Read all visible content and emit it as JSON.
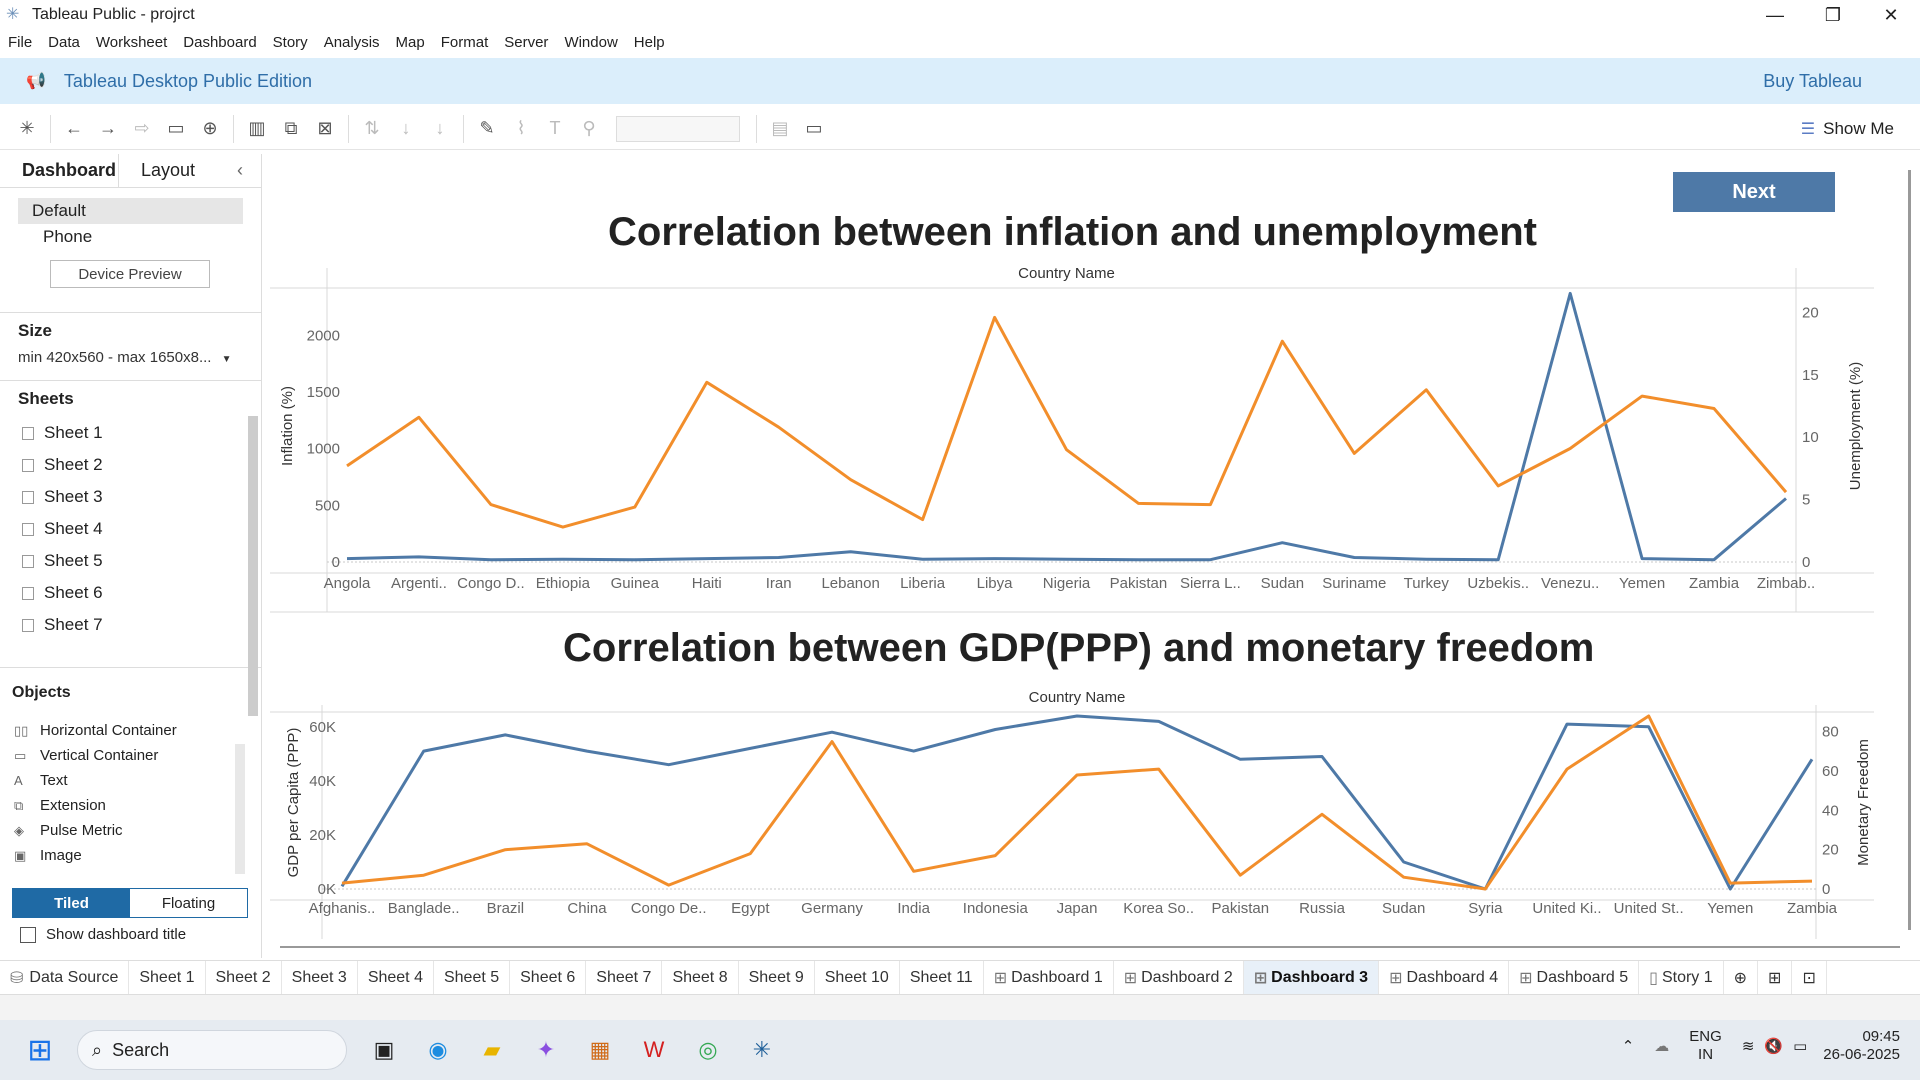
{
  "window": {
    "title": "Tableau Public - projrct",
    "minimize": "—",
    "restore": "❐",
    "close": "✕"
  },
  "menu": [
    "File",
    "Data",
    "Worksheet",
    "Dashboard",
    "Story",
    "Analysis",
    "Map",
    "Format",
    "Server",
    "Window",
    "Help"
  ],
  "banner": {
    "edition": "Tableau Desktop Public Edition",
    "buy": "Buy Tableau"
  },
  "toolbar": {
    "show_me": "Show Me"
  },
  "left_pane": {
    "tab_dashboard": "Dashboard",
    "tab_layout": "Layout",
    "devices": [
      "Default",
      "Phone"
    ],
    "device_preview": "Device Preview",
    "size_heading": "Size",
    "size_value": "min 420x560 - max 1650x8...",
    "sheets_heading": "Sheets",
    "sheets": [
      "Sheet 1",
      "Sheet 2",
      "Sheet 3",
      "Sheet 4",
      "Sheet 5",
      "Sheet 6",
      "Sheet 7"
    ],
    "objects_heading": "Objects",
    "objects": [
      {
        "icon": "horizontal-container-icon",
        "glyph": "▯▯",
        "label": "Horizontal Container"
      },
      {
        "icon": "vertical-container-icon",
        "glyph": "▭",
        "label": "Vertical Container"
      },
      {
        "icon": "text-icon",
        "glyph": "A",
        "label": "Text"
      },
      {
        "icon": "extension-icon",
        "glyph": "⧉",
        "label": "Extension"
      },
      {
        "icon": "pulse-metric-icon",
        "glyph": "◈",
        "label": "Pulse Metric"
      },
      {
        "icon": "image-icon",
        "glyph": "▣",
        "label": "Image"
      }
    ],
    "tiled": "Tiled",
    "floating": "Floating",
    "show_title": "Show dashboard title"
  },
  "dashboard": {
    "next": "Next"
  },
  "chart_data": [
    {
      "type": "line",
      "title": "Correlation between inflation and unemployment",
      "xlabel": "Country Name",
      "categories": [
        "Angola",
        "Argenti..",
        "Congo D..",
        "Ethiopia",
        "Guinea",
        "Haiti",
        "Iran",
        "Lebanon",
        "Liberia",
        "Libya",
        "Nigeria",
        "Pakistan",
        "Sierra L..",
        "Sudan",
        "Suriname",
        "Turkey",
        "Uzbekis..",
        "Venezu..",
        "Yemen",
        "Zambia",
        "Zimbab.."
      ],
      "left_axis": {
        "label": "Inflation (%)",
        "ylim": [
          0,
          2400
        ],
        "ticks": [
          0,
          500,
          1000,
          1500,
          2000
        ]
      },
      "right_axis": {
        "label": "Unemployment (%)",
        "ylim": [
          0,
          21.8
        ],
        "ticks": [
          0,
          5,
          10,
          15,
          20
        ]
      },
      "series": [
        {
          "axis": "left",
          "color": "#4e79a7",
          "values": [
            30,
            45,
            20,
            25,
            20,
            30,
            40,
            90,
            25,
            30,
            25,
            20,
            20,
            170,
            40,
            25,
            20,
            2370,
            30,
            20,
            560
          ]
        },
        {
          "axis": "right",
          "color": "#f28e2b",
          "values": [
            7.7,
            11.6,
            4.6,
            2.8,
            4.4,
            14.4,
            10.8,
            6.6,
            3.4,
            19.6,
            9.0,
            4.7,
            4.6,
            17.7,
            8.7,
            13.8,
            6.1,
            9.1,
            13.3,
            12.3,
            5.6
          ]
        }
      ]
    },
    {
      "type": "line",
      "title": "Correlation between GDP(PPP) and monetary freedom",
      "xlabel": "Country Name",
      "categories": [
        "Afghanis..",
        "Banglade..",
        "Brazil",
        "China",
        "Congo De..",
        "Egypt",
        "Germany",
        "India",
        "Indonesia",
        "Japan",
        "Korea So..",
        "Pakistan",
        "Russia",
        "Sudan",
        "Syria",
        "United Ki..",
        "United St..",
        "Yemen",
        "Zambia"
      ],
      "left_axis": {
        "label": "GDP per Capita (PPP)",
        "ylim": [
          0,
          64000
        ],
        "ticks": [
          "0K",
          "20K",
          "40K",
          "60K"
        ]
      },
      "right_axis": {
        "label": "Monetary Freedom",
        "ylim": [
          0,
          88
        ],
        "ticks": [
          0,
          20,
          40,
          60,
          80
        ]
      },
      "series": [
        {
          "axis": "left",
          "color": "#4e79a7",
          "values": [
            1000,
            51000,
            57000,
            51000,
            46000,
            52000,
            58000,
            51000,
            59000,
            64000,
            62000,
            48000,
            49000,
            10000,
            0,
            61000,
            60000,
            0,
            48000
          ]
        },
        {
          "axis": "right",
          "color": "#f28e2b",
          "values": [
            3,
            7,
            20,
            23,
            2,
            18,
            75,
            9,
            17,
            58,
            61,
            7,
            38,
            6,
            0,
            61,
            88,
            3,
            4
          ]
        }
      ]
    }
  ],
  "sheet_tabs": [
    "Data Source",
    "Sheet 1",
    "Sheet 2",
    "Sheet 3",
    "Sheet 4",
    "Sheet 5",
    "Sheet 6",
    "Sheet 7",
    "Sheet 8",
    "Sheet 9",
    "Sheet 10",
    "Sheet 11",
    "Dashboard 1",
    "Dashboard 2",
    "Dashboard 3",
    "Dashboard 4",
    "Dashboard 5",
    "Story 1"
  ],
  "active_tab": "Dashboard 3",
  "taskbar": {
    "search": "Search",
    "lang": "ENG",
    "region": "IN",
    "time": "09:45",
    "date": "26-06-2025"
  }
}
